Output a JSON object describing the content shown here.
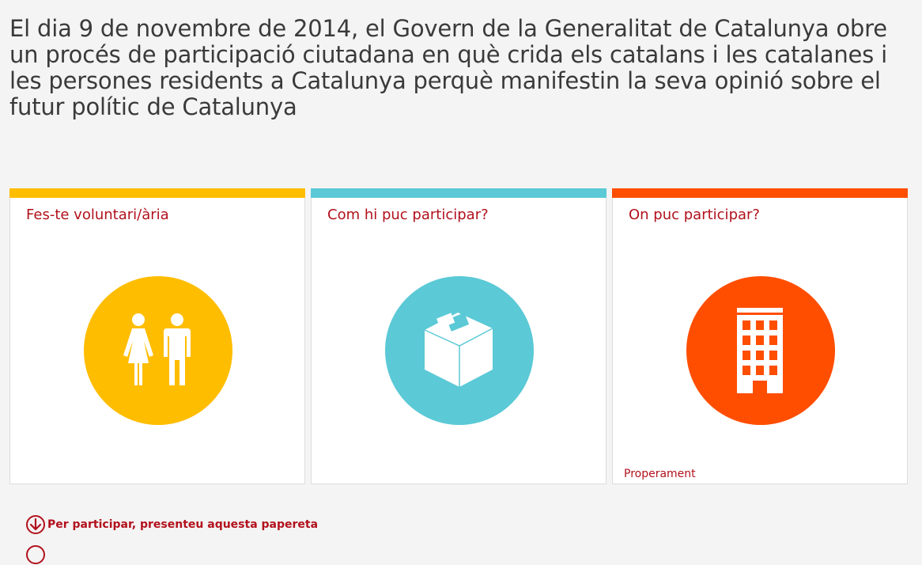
{
  "intro": {
    "text": "El dia 9 de novembre de 2014, el Govern de la Generalitat de Catalunya obre un procés de participació ciutadana en què crida els catalans i les catalanes i les persones residents a Catalunya perquè manifestin la seva opinió sobre el futur polític de Catalunya"
  },
  "cards": [
    {
      "title": "Fes-te voluntari/ària",
      "color": "#ffbd00",
      "icon": "people-icon",
      "note": ""
    },
    {
      "title": "Com hi puc participar?",
      "color": "#5bc9d6",
      "icon": "ballot-box-icon",
      "note": ""
    },
    {
      "title": "On puc participar?",
      "color": "#ff4e00",
      "icon": "building-icon",
      "note": "Properament"
    }
  ],
  "links": [
    {
      "label": "Per participar, presenteu aquesta papereta",
      "icon": "arrow-down-circle-icon"
    }
  ],
  "colors": {
    "accent_text": "#b2111c",
    "page_bg": "#f4f4f4",
    "heading_text": "#3a3a3a"
  }
}
